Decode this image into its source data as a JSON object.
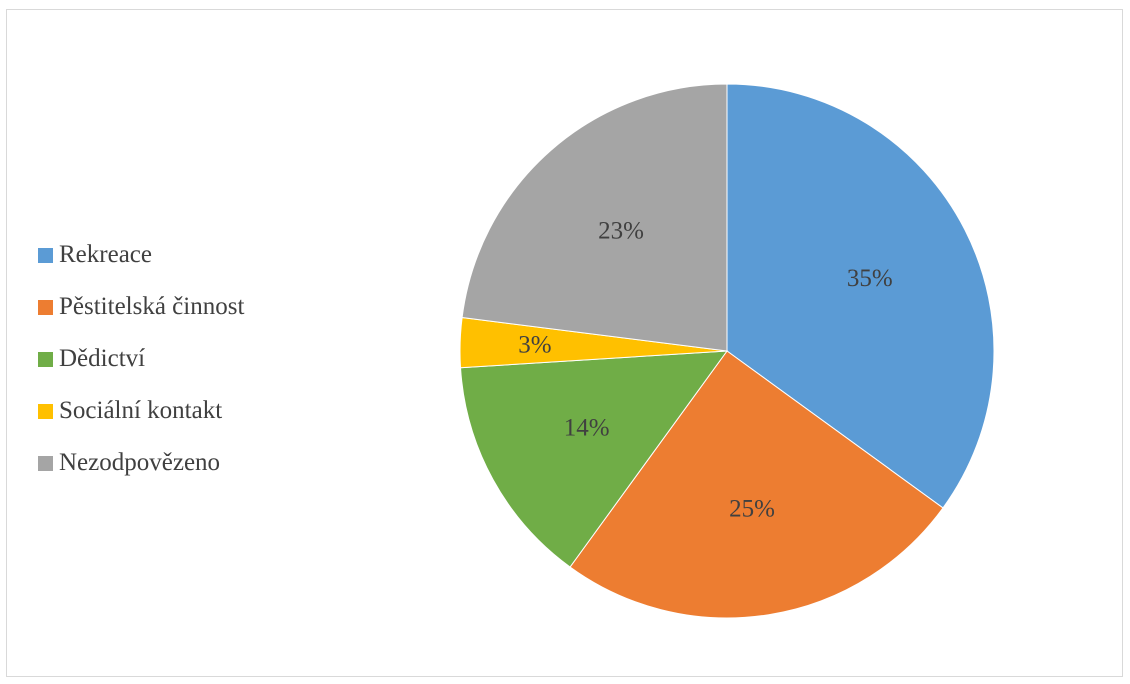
{
  "chart_data": {
    "type": "pie",
    "categories": [
      "Rekreace",
      "Pěstitelská činnost",
      "Dědictví",
      "Sociální kontakt",
      "Nezodpovězeno"
    ],
    "values": [
      35,
      25,
      14,
      3,
      23
    ],
    "labels": [
      "35%",
      "25%",
      "14%",
      "3%",
      "23%"
    ],
    "colors": [
      "#5b9bd5",
      "#ed7d31",
      "#70ad47",
      "#ffc000",
      "#a5a5a5"
    ],
    "legend_position": "left",
    "start_angle": "12 o'clock",
    "direction": "clockwise"
  }
}
